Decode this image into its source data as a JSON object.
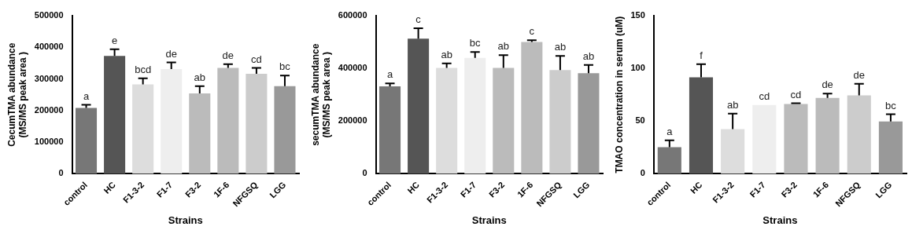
{
  "chart_data": [
    {
      "type": "bar",
      "xlabel": "Strains",
      "ylabel": "CecumTMA abundance\n(MS/MS peak area )",
      "categories": [
        "control",
        "HC",
        "F1-3-2",
        "F1-7",
        "F3-2",
        "1F-6",
        "NFGSQ",
        "LGG"
      ],
      "values": [
        208000,
        373000,
        283000,
        331000,
        254000,
        335000,
        316000,
        277000
      ],
      "errors": [
        [
          208000,
          218000
        ],
        [
          373000,
          394000
        ],
        [
          283000,
          302000
        ],
        [
          331000,
          352000
        ],
        [
          254000,
          277000
        ],
        [
          335000,
          347000
        ],
        [
          316000,
          335000
        ],
        [
          277000,
          311000
        ]
      ],
      "colors": [
        "#777777",
        "#555555",
        "#dddddd",
        "#eeeeee",
        "#bbbbbb",
        "#bbbbbb",
        "#cccccc",
        "#999999"
      ],
      "ylim": [
        0,
        500000
      ],
      "yticks": [
        0,
        100000,
        200000,
        300000,
        400000,
        500000
      ],
      "grid": false,
      "annotations": [
        {
          "text": "a",
          "x": "control",
          "y": 218000
        },
        {
          "text": "e",
          "x": "HC",
          "y": 394000
        },
        {
          "text": "bcd",
          "x": "F1-3-2",
          "y": 302000
        },
        {
          "text": "de",
          "x": "F1-7",
          "y": 352000
        },
        {
          "text": "ab",
          "x": "F3-2",
          "y": 277000
        },
        {
          "text": "de",
          "x": "1F-6",
          "y": 347000
        },
        {
          "text": "cd",
          "x": "NFGSQ",
          "y": 335000
        },
        {
          "text": "bc",
          "x": "LGG",
          "y": 311000
        }
      ]
    },
    {
      "type": "bar",
      "xlabel": "Strains",
      "ylabel": "secumTMA abundance\n(MS/MS peak area )",
      "categories": [
        "control",
        "HC",
        "F1-3-2",
        "F1-7",
        "F3-2",
        "1F-6",
        "NFGSQ",
        "LGG"
      ],
      "values": [
        332000,
        513000,
        402000,
        440000,
        402000,
        500000,
        394000,
        382000
      ],
      "errors": [
        [
          332000,
          343000
        ],
        [
          513000,
          552000
        ],
        [
          402000,
          419000
        ],
        [
          440000,
          462000
        ],
        [
          402000,
          450000
        ],
        [
          500000,
          507000
        ],
        [
          394000,
          447000
        ],
        [
          382000,
          413000
        ]
      ],
      "colors": [
        "#777777",
        "#555555",
        "#dddddd",
        "#eeeeee",
        "#bbbbbb",
        "#bbbbbb",
        "#cccccc",
        "#999999"
      ],
      "ylim": [
        0,
        600000
      ],
      "yticks": [
        0,
        200000,
        400000,
        600000
      ],
      "grid": false,
      "annotations": [
        {
          "text": "a",
          "x": "control",
          "y": 343000
        },
        {
          "text": "c",
          "x": "HC",
          "y": 552000
        },
        {
          "text": "ab",
          "x": "F1-3-2",
          "y": 419000
        },
        {
          "text": "bc",
          "x": "F1-7",
          "y": 462000
        },
        {
          "text": "ab",
          "x": "F3-2",
          "y": 450000
        },
        {
          "text": "c",
          "x": "1F-6",
          "y": 507000
        },
        {
          "text": "ab",
          "x": "NFGSQ",
          "y": 447000
        },
        {
          "text": "ab",
          "x": "LGG",
          "y": 413000
        }
      ]
    },
    {
      "type": "bar",
      "xlabel": "Strains",
      "ylabel": "TMAO concentration in serum (uM)",
      "categories": [
        "control",
        "HC",
        "F1-3-2",
        "F1-7",
        "F3-2",
        "1F-6",
        "NFGSQ",
        "LGG"
      ],
      "values": [
        25.3,
        91.6,
        42.4,
        65.2,
        66.3,
        72,
        74.4,
        49.7
      ],
      "errors": [
        [
          25.3,
          31.7
        ],
        [
          91.6,
          104
        ],
        [
          42.4,
          57
        ],
        null,
        [
          66.3,
          67
        ],
        [
          72,
          76
        ],
        [
          74.4,
          85.4
        ],
        [
          49.7,
          56.5
        ]
      ],
      "colors": [
        "#777777",
        "#555555",
        "#dddddd",
        "#eeeeee",
        "#bbbbbb",
        "#bbbbbb",
        "#cccccc",
        "#999999"
      ],
      "ylim": [
        0,
        150
      ],
      "yticks": [
        0,
        50,
        100,
        150
      ],
      "grid": false,
      "annotations": [
        {
          "text": "a",
          "x": "control",
          "y": 31.7
        },
        {
          "text": "f",
          "x": "HC",
          "y": 104
        },
        {
          "text": "ab",
          "x": "F1-3-2",
          "y": 57
        },
        {
          "text": "cd",
          "x": "F1-7",
          "y": 65.2
        },
        {
          "text": "cd",
          "x": "F3-2",
          "y": 67
        },
        {
          "text": "de",
          "x": "1F-6",
          "y": 76
        },
        {
          "text": "de",
          "x": "NFGSQ",
          "y": 85.4
        },
        {
          "text": "bc",
          "x": "LGG",
          "y": 56.5
        }
      ]
    }
  ]
}
